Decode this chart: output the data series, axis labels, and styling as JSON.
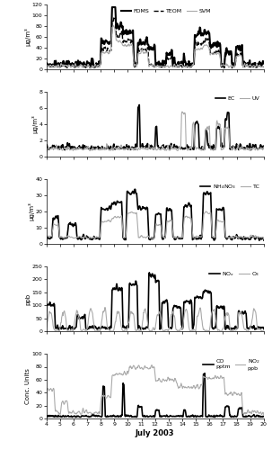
{
  "xlim": [
    4,
    20
  ],
  "xticks": [
    4,
    5,
    6,
    7,
    8,
    9,
    10,
    11,
    12,
    13,
    14,
    15,
    16,
    17,
    18,
    19,
    20
  ],
  "xlabel": "July 2003",
  "panels": [
    {
      "ylabel": "μg/m³",
      "ylim": [
        0,
        120
      ],
      "yticks": [
        0,
        20,
        40,
        60,
        80,
        100,
        120
      ],
      "legend_ncol": 3
    },
    {
      "ylabel": "μg/m³",
      "ylim": [
        0,
        8
      ],
      "yticks": [
        0,
        2,
        4,
        6,
        8
      ],
      "legend_ncol": 2
    },
    {
      "ylabel": "μg/m³",
      "ylim": [
        0,
        40
      ],
      "yticks": [
        0,
        10,
        20,
        30,
        40
      ],
      "legend_ncol": 2
    },
    {
      "ylabel": "ppb",
      "ylim": [
        0,
        250
      ],
      "yticks": [
        0,
        50,
        100,
        150,
        200,
        250
      ],
      "legend_ncol": 2
    },
    {
      "ylabel": "Conc. Units",
      "ylim": [
        0,
        100
      ],
      "yticks": [
        0,
        20,
        40,
        60,
        80,
        100
      ],
      "legend_ncol": 2
    }
  ]
}
